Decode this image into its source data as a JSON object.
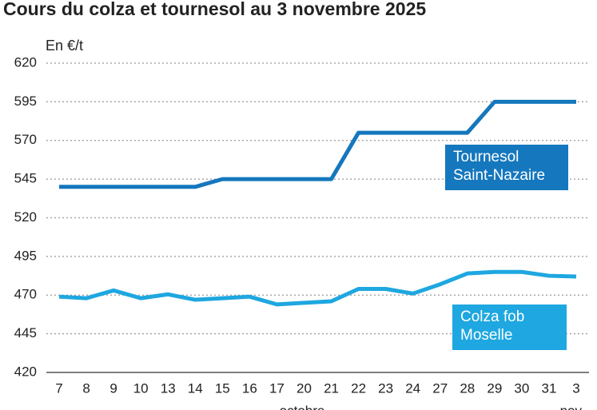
{
  "chart_data": {
    "type": "line",
    "title": "Cours du colza et tournesol au 3 novembre 2025",
    "y_axis_label": "En €/t",
    "categories": [
      "7",
      "8",
      "9",
      "10",
      "13",
      "14",
      "15",
      "16",
      "17",
      "20",
      "21",
      "22",
      "23",
      "24",
      "27",
      "28",
      "29",
      "30",
      "31",
      "3"
    ],
    "x_group_labels": [
      "octobre",
      "nov."
    ],
    "series": [
      {
        "name": "Tournesol Saint-Nazaire",
        "color": "#1577bd",
        "values": [
          540,
          540,
          540,
          540,
          540,
          540,
          545,
          545,
          545,
          545,
          545,
          575,
          575,
          575,
          575,
          575,
          595,
          595,
          595,
          595
        ]
      },
      {
        "name": "Colza fob Moselle",
        "color": "#1ea7e0",
        "values": [
          469,
          468,
          473,
          468,
          470.5,
          467,
          468,
          469,
          464,
          465,
          466,
          474,
          474,
          471,
          477,
          484,
          485,
          485,
          482.5,
          482
        ]
      }
    ],
    "ylim": [
      420,
      620
    ],
    "yticks": [
      420,
      445,
      470,
      495,
      520,
      545,
      570,
      595,
      620
    ],
    "grid": true
  }
}
